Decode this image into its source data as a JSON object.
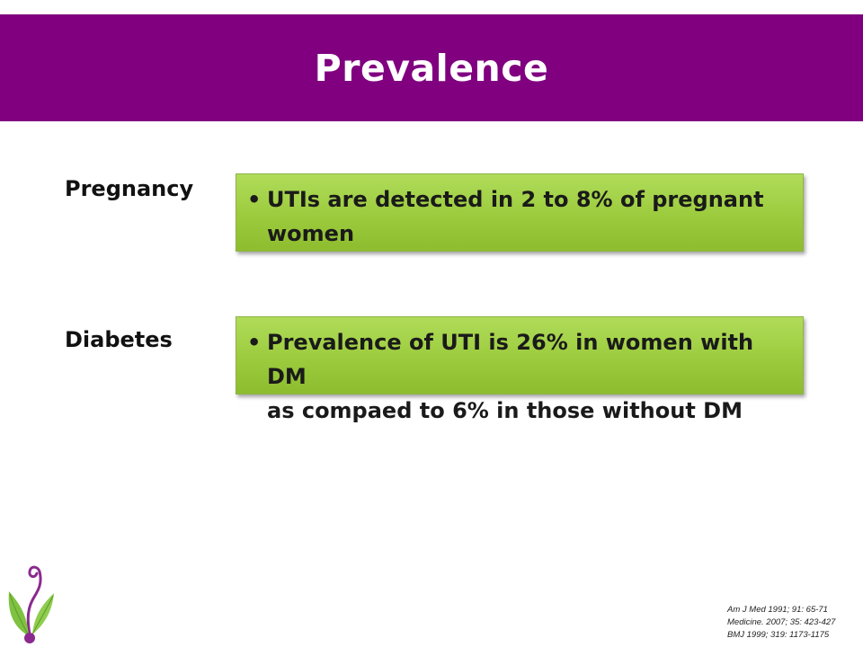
{
  "slide": {
    "title": "Prevalence",
    "rows": [
      {
        "label": "Pregnancy",
        "bullet": "•",
        "text_line1": "UTIs are detected in 2 to 8% of pregnant",
        "text_line2": "women"
      },
      {
        "label": "Diabetes",
        "bullet": "•",
        "text_line1": "Prevalence of UTI is 26% in women with DM",
        "text_line2": "as compaed to 6% in those without DM"
      }
    ],
    "references": [
      "Am J Med 1991; 91: 65-71",
      "Medicine. 2007; 35: 423-427",
      "BMJ 1999; 319: 1173-1175"
    ]
  },
  "colors": {
    "title_bar": "#800080",
    "box_green": "#9ccb3d",
    "logo_purple": "#8a2a8e",
    "logo_green": "#7fc241"
  },
  "icons": {
    "logo": "leaf-swirl-logo-icon"
  }
}
